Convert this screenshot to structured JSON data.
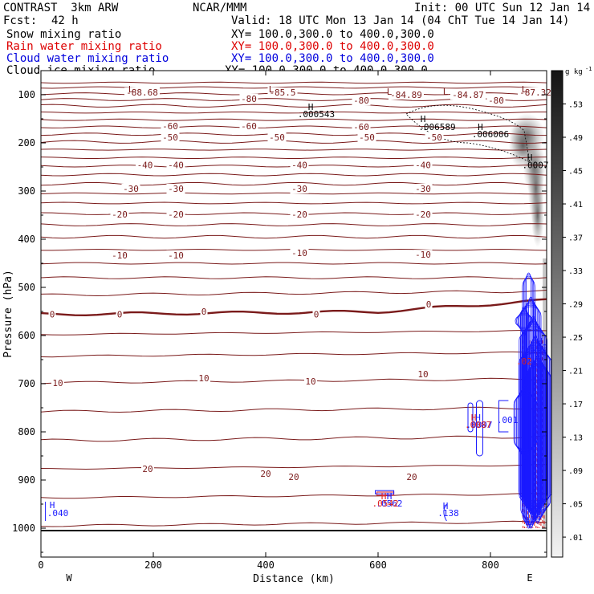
{
  "header": {
    "model": "CONTRAST  3km ARW",
    "center": "NCAR/MMM",
    "init": "Init: 00 UTC Sun 12 Jan 14",
    "fcst_label": "Fcst:",
    "fcst_value": "42 h",
    "valid": "Valid: 18 UTC Mon 13 Jan 14 (04 ChT Tue 14 Jan 14)"
  },
  "legend": [
    {
      "name": "Snow mixing ratio",
      "xy": "XY= 100.0,300.0 to 400.0,300.0",
      "color": "#000000"
    },
    {
      "name": "Rain water mixing ratio",
      "xy": "XY= 100.0,300.0 to 400.0,300.0",
      "color": "#dd0000"
    },
    {
      "name": "Cloud water mixing ratio",
      "xy": "XY= 100.0,300.0 to 400.0,300.0",
      "color": "#0000dd"
    },
    {
      "name": "Cloud ice mixing ratio",
      "xy": "XY= 100.0,300.0 to 400.0,300.0",
      "color": "#000000"
    }
  ],
  "colors": {
    "temperature": "#7a1a1a",
    "rain": "#dd2222",
    "cloud_water": "#1a1aff",
    "snow": "#000000"
  },
  "chart_data": {
    "type": "contour-cross-section",
    "xlabel": "Distance (km)",
    "ylabel": "Pressure (hPa)",
    "xlim": [
      0,
      900
    ],
    "ylim": [
      1060,
      50
    ],
    "x_ticks": [
      0,
      200,
      400,
      600,
      800
    ],
    "y_ticks": [
      100,
      200,
      300,
      400,
      500,
      600,
      700,
      800,
      900,
      1000
    ],
    "x_end_labels": {
      "west": "W",
      "east": "E"
    },
    "colorbar": {
      "unit": "g kg",
      "unit_exp": "-1",
      "ticks": [
        ".53",
        ".49",
        ".45",
        ".41",
        ".37",
        ".33",
        ".29",
        ".25",
        ".21",
        ".17",
        ".13",
        ".09",
        ".05",
        ".01"
      ]
    },
    "temperature_labels": [
      {
        "text": "-88.68",
        "x": 180,
        "p": 95
      },
      {
        "text": "-85.5",
        "x": 430,
        "p": 95
      },
      {
        "text": "-84.89",
        "x": 650,
        "p": 100
      },
      {
        "text": "-84.87",
        "x": 760,
        "p": 100
      },
      {
        "text": "-87.32",
        "x": 880,
        "p": 95
      },
      {
        "text": "-80",
        "x": 370,
        "p": 108
      },
      {
        "text": "-80",
        "x": 570,
        "p": 112
      },
      {
        "text": "-80",
        "x": 810,
        "p": 112
      },
      {
        "text": "-60",
        "x": 230,
        "p": 165
      },
      {
        "text": "-60",
        "x": 370,
        "p": 165
      },
      {
        "text": "-60",
        "x": 570,
        "p": 167
      },
      {
        "text": "-50",
        "x": 230,
        "p": 188
      },
      {
        "text": "-50",
        "x": 420,
        "p": 188
      },
      {
        "text": "-50",
        "x": 580,
        "p": 188
      },
      {
        "text": "-50",
        "x": 700,
        "p": 188
      },
      {
        "text": "-40",
        "x": 185,
        "p": 246
      },
      {
        "text": "-40",
        "x": 240,
        "p": 246
      },
      {
        "text": "-40",
        "x": 460,
        "p": 246
      },
      {
        "text": "-40",
        "x": 680,
        "p": 246
      },
      {
        "text": "-30",
        "x": 160,
        "p": 295
      },
      {
        "text": "-30",
        "x": 240,
        "p": 295
      },
      {
        "text": "-30",
        "x": 460,
        "p": 295
      },
      {
        "text": "-30",
        "x": 680,
        "p": 295
      },
      {
        "text": "-20",
        "x": 140,
        "p": 348
      },
      {
        "text": "-20",
        "x": 240,
        "p": 348
      },
      {
        "text": "-20",
        "x": 460,
        "p": 348
      },
      {
        "text": "-20",
        "x": 680,
        "p": 348
      },
      {
        "text": "-10",
        "x": 140,
        "p": 433
      },
      {
        "text": "-10",
        "x": 240,
        "p": 433
      },
      {
        "text": "-10",
        "x": 460,
        "p": 428
      },
      {
        "text": "-10",
        "x": 680,
        "p": 432
      },
      {
        "text": "0",
        "x": 20,
        "p": 556
      },
      {
        "text": "0",
        "x": 140,
        "p": 556
      },
      {
        "text": "0",
        "x": 290,
        "p": 550
      },
      {
        "text": "0",
        "x": 490,
        "p": 556
      },
      {
        "text": "0",
        "x": 690,
        "p": 535
      },
      {
        "text": "10",
        "x": 30,
        "p": 698
      },
      {
        "text": "10",
        "x": 290,
        "p": 688
      },
      {
        "text": "10",
        "x": 480,
        "p": 695
      },
      {
        "text": "10",
        "x": 680,
        "p": 680
      },
      {
        "text": "20",
        "x": 190,
        "p": 877
      },
      {
        "text": "20",
        "x": 400,
        "p": 887
      },
      {
        "text": "20",
        "x": 450,
        "p": 893
      },
      {
        "text": "20",
        "x": 660,
        "p": 893
      }
    ],
    "temperature_isotherms_hPa_at_left": [
      75,
      85,
      98,
      110,
      123,
      137,
      152,
      167,
      182,
      198,
      214,
      231,
      248,
      266,
      285,
      305,
      325,
      347,
      370,
      395,
      422,
      450,
      480,
      516,
      556,
      598,
      643,
      698,
      758,
      818,
      877,
      937,
      995
    ],
    "pressure_extrema_labels": [
      {
        "text": "L",
        "x": 160,
        "p": 88,
        "color": "#7a1a1a"
      },
      {
        "text": "L",
        "x": 410,
        "p": 88,
        "color": "#7a1a1a"
      },
      {
        "text": "L",
        "x": 620,
        "p": 93,
        "color": "#7a1a1a"
      },
      {
        "text": "L",
        "x": 720,
        "p": 93,
        "color": "#7a1a1a"
      },
      {
        "text": "L",
        "x": 860,
        "p": 88,
        "color": "#7a1a1a"
      },
      {
        "text": "H",
        "x": 480,
        "p": 125,
        "color": "#000000"
      },
      {
        "text": ".000543",
        "x": 490,
        "p": 140,
        "color": "#000000"
      },
      {
        "text": "H",
        "x": 680,
        "p": 150,
        "color": "#000000"
      },
      {
        "text": ".006589",
        "x": 705,
        "p": 167,
        "color": "#000000"
      },
      {
        "text": "H",
        "x": 782,
        "p": 167,
        "color": "#000000"
      },
      {
        "text": ".006006",
        "x": 800,
        "p": 182,
        "color": "#000000"
      },
      {
        "text": "H",
        "x": 870,
        "p": 230,
        "color": "#000000"
      },
      {
        "text": ".0007",
        "x": 880,
        "p": 246,
        "color": "#000000"
      },
      {
        "text": "H",
        "x": 20,
        "p": 952,
        "color": "#1a1aff"
      },
      {
        "text": ".040",
        "x": 30,
        "p": 968,
        "color": "#1a1aff"
      },
      {
        "text": "H",
        "x": 620,
        "p": 933,
        "color": "#1a1aff"
      },
      {
        "text": ".0562",
        "x": 620,
        "p": 948,
        "color": "#1a1aff"
      },
      {
        "text": "H",
        "x": 610,
        "p": 933,
        "color": "#dd2222"
      },
      {
        "text": ".0542",
        "x": 613,
        "p": 948,
        "color": "#dd2222"
      },
      {
        "text": "H",
        "x": 720,
        "p": 953,
        "color": "#1a1aff"
      },
      {
        "text": ".138",
        "x": 725,
        "p": 968,
        "color": "#1a1aff"
      },
      {
        "text": "H",
        "x": 770,
        "p": 770,
        "color": "#dd2222"
      },
      {
        "text": "H",
        "x": 778,
        "p": 770,
        "color": "#1a1aff"
      },
      {
        "text": ".0097",
        "x": 780,
        "p": 785,
        "color": "#1a1aff"
      },
      {
        "text": ".0087",
        "x": 778,
        "p": 785,
        "color": "#dd2222"
      },
      {
        "text": ".001",
        "x": 830,
        "p": 775,
        "color": "#1a1aff"
      },
      {
        "text": ".02",
        "x": 860,
        "p": 653,
        "color": "#dd2222"
      },
      {
        "text": "H",
        "x": 888,
        "p": 612,
        "color": "#1a1aff"
      },
      {
        "text": ".09",
        "x": 887,
        "p": 625,
        "color": "#1a1aff"
      }
    ]
  }
}
